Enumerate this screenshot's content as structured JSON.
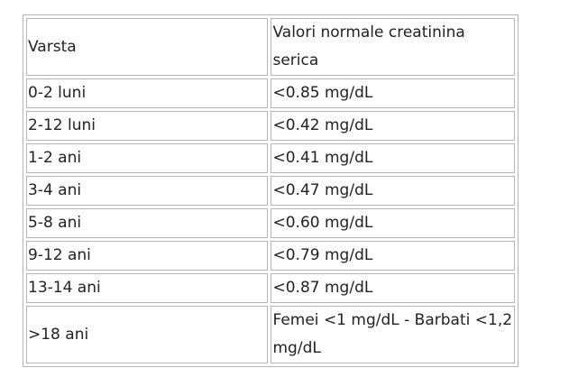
{
  "table": {
    "header": {
      "col1": "Varsta",
      "col2": "Valori normale creatinina serica"
    },
    "rows": [
      {
        "age": "0-2 luni",
        "value": "<0.85 mg/dL"
      },
      {
        "age": "2-12 luni",
        "value": "<0.42 mg/dL"
      },
      {
        "age": "1-2 ani",
        "value": "<0.41 mg/dL"
      },
      {
        "age": "3-4 ani",
        "value": "<0.47 mg/dL"
      },
      {
        "age": "5-8 ani",
        "value": "<0.60 mg/dL"
      },
      {
        "age": "9-12 ani",
        "value": "<0.79 mg/dL"
      },
      {
        "age": "13-14 ani",
        "value": "<0.87 mg/dL"
      },
      {
        "age": ">18 ani",
        "value": "Femei <1 mg/dL  -  Barbati <1,2 mg/dL"
      }
    ]
  }
}
